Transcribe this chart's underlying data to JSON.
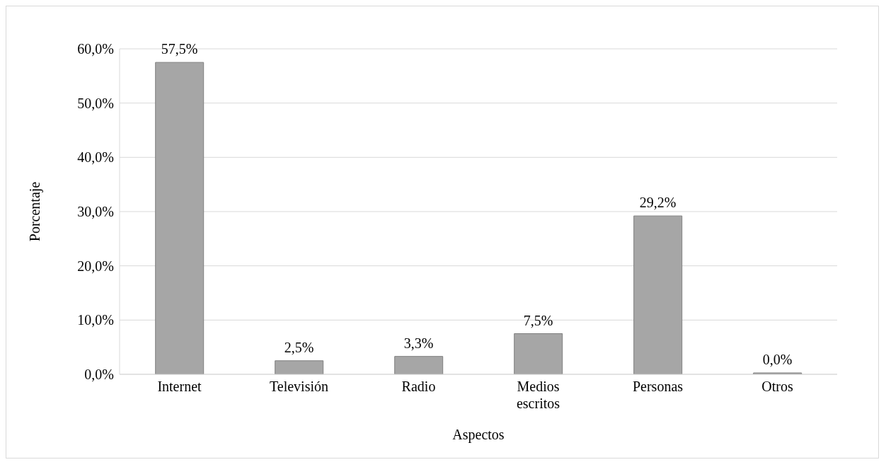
{
  "chart_data": {
    "type": "bar",
    "xlabel": "Aspectos",
    "ylabel": "Porcentaje",
    "categories": [
      "Internet",
      "Televisión",
      "Radio",
      "Medios escritos",
      "Personas",
      "Otros"
    ],
    "values": [
      57.5,
      2.5,
      3.3,
      7.5,
      29.2,
      0.0
    ],
    "value_labels": [
      "57,5%",
      "2,5%",
      "3,3%",
      "7,5%",
      "29,2%",
      "0,0%"
    ],
    "color": "#a6a6a6",
    "ylim": [
      0,
      60
    ],
    "yticks": [
      {
        "value": 0,
        "label": "0,0%"
      },
      {
        "value": 10,
        "label": "10,0%"
      },
      {
        "value": 20,
        "label": "20,0%"
      },
      {
        "value": 30,
        "label": "30,0%"
      },
      {
        "value": 40,
        "label": "40,0%"
      },
      {
        "value": 50,
        "label": "50,0%"
      },
      {
        "value": 60,
        "label": "60,0%"
      }
    ],
    "grid": "y",
    "legend": false
  }
}
